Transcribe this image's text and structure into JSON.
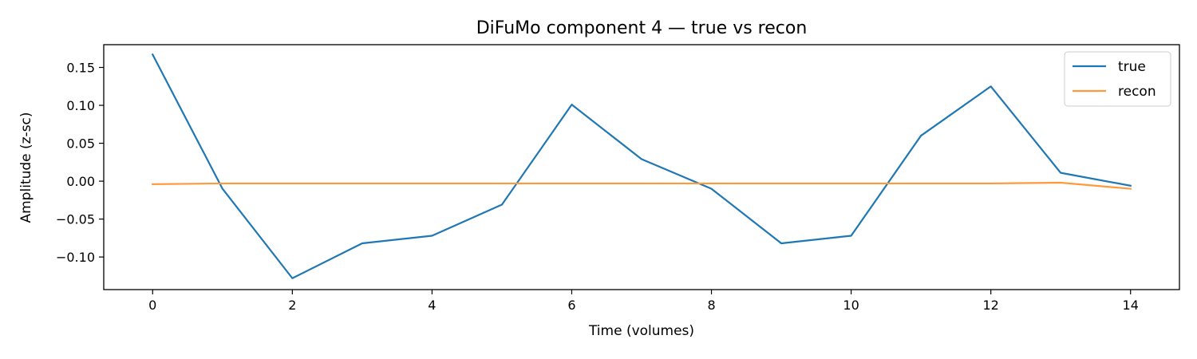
{
  "chart_data": {
    "type": "line",
    "title": "DiFuMo component 4 — true vs recon",
    "xlabel": "Time (volumes)",
    "ylabel": "Amplitude (z-sc)",
    "xlim": [
      -0.7,
      14.7
    ],
    "ylim": [
      -0.143,
      0.18
    ],
    "xticks": [
      0,
      2,
      4,
      6,
      8,
      10,
      12,
      14
    ],
    "xtick_labels": [
      "0",
      "2",
      "4",
      "6",
      "8",
      "10",
      "12",
      "14"
    ],
    "yticks": [
      0.15,
      0.1,
      0.05,
      0.0,
      -0.05,
      -0.1
    ],
    "ytick_labels": [
      "0.15",
      "0.10",
      "0.05",
      "0.00",
      "−0.05",
      "−0.10"
    ],
    "grid": false,
    "legend_position": "top-right",
    "x": [
      0,
      1,
      2,
      3,
      4,
      5,
      6,
      7,
      8,
      9,
      10,
      11,
      12,
      13,
      14
    ],
    "series": [
      {
        "name": "true",
        "color": "#1f77b4",
        "values": [
          0.167,
          -0.01,
          -0.128,
          -0.082,
          -0.072,
          -0.031,
          0.101,
          0.029,
          -0.01,
          -0.082,
          -0.072,
          0.06,
          0.125,
          0.011,
          -0.006
        ]
      },
      {
        "name": "recon",
        "color": "#ff9a3c",
        "values": [
          -0.004,
          -0.003,
          -0.003,
          -0.003,
          -0.003,
          -0.003,
          -0.003,
          -0.003,
          -0.003,
          -0.003,
          -0.003,
          -0.003,
          -0.003,
          -0.002,
          -0.01
        ]
      }
    ]
  }
}
